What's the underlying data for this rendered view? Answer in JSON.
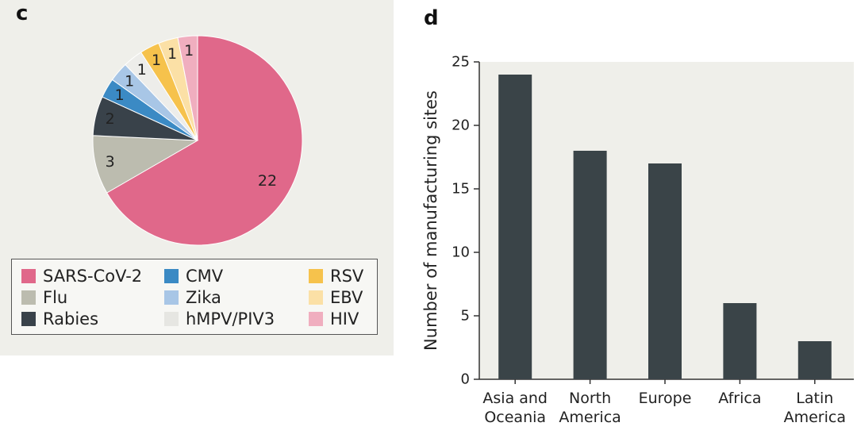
{
  "panels": {
    "c": "c",
    "d": "d"
  },
  "chart_data": [
    {
      "type": "pie",
      "slices": [
        {
          "name": "SARS-CoV-2",
          "value": 22,
          "label": "22",
          "color": "#e0688a"
        },
        {
          "name": "Flu",
          "value": 3,
          "label": "3",
          "color": "#bcbcaf"
        },
        {
          "name": "Rabies",
          "value": 2,
          "label": "2",
          "color": "#39424a"
        },
        {
          "name": "CMV",
          "value": 1,
          "label": "1",
          "color": "#3b8ac4"
        },
        {
          "name": "Zika",
          "value": 1,
          "label": "1",
          "color": "#a8c6e6"
        },
        {
          "name": "hMPV/PIV3",
          "value": 1,
          "label": "1",
          "color": "#ededea"
        },
        {
          "name": "RSV",
          "value": 1,
          "label": "1",
          "color": "#f6c24c"
        },
        {
          "name": "EBV",
          "value": 1,
          "label": "1",
          "color": "#fbe0a6"
        },
        {
          "name": "HIV",
          "value": 1,
          "label": "1",
          "color": "#f0aebf"
        }
      ],
      "start": "12 o'clock, clockwise",
      "legend_placement": "bottom"
    },
    {
      "type": "bar",
      "categories": [
        [
          "Asia and",
          "Oceania"
        ],
        [
          "North",
          "America"
        ],
        [
          "Europe"
        ],
        [
          "Africa"
        ],
        [
          "Latin",
          "America"
        ]
      ],
      "values": [
        24,
        18,
        17,
        6,
        3
      ],
      "ylabel": "Number of manufacturing sites",
      "ylim": [
        0,
        25
      ],
      "yticks": [
        0,
        5,
        10,
        15,
        20,
        25
      ],
      "bar_color": "#3a4448",
      "plot_background": "#efefea",
      "grid": false
    }
  ]
}
